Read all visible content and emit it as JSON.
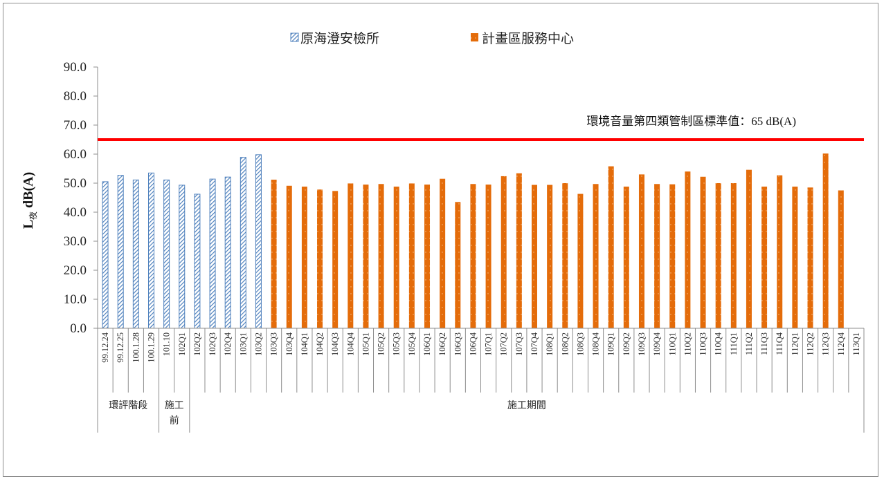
{
  "chart_data": {
    "type": "bar",
    "title": "",
    "ylabel": {
      "main": "L",
      "sub": "夜",
      "suffix": " dB(A)"
    },
    "ylim": [
      0,
      90
    ],
    "yticks": [
      "0.0",
      "10.0",
      "20.0",
      "30.0",
      "40.0",
      "50.0",
      "60.0",
      "70.0",
      "80.0",
      "90.0"
    ],
    "legend": {
      "position": "top-center"
    },
    "categories": [
      "99.12.24",
      "99.12.25",
      "100.1.28",
      "100.1.29",
      "101.10",
      "102Q1",
      "102Q2",
      "102Q3",
      "102Q4",
      "103Q1",
      "103Q2",
      "103Q3",
      "103Q4",
      "104Q1",
      "104Q2",
      "104Q3",
      "104Q4",
      "105Q1",
      "105Q2",
      "105Q3",
      "105Q4",
      "106Q1",
      "106Q2",
      "106Q3",
      "106Q4",
      "107Q1",
      "107Q2",
      "107Q3",
      "107Q4",
      "108Q1",
      "108Q2",
      "108Q3",
      "108Q4",
      "109Q1",
      "109Q2",
      "109Q3",
      "109Q4",
      "110Q1",
      "110Q2",
      "110Q3",
      "110Q4",
      "111Q1",
      "111Q2",
      "111Q3",
      "111Q4",
      "112Q1",
      "112Q2",
      "112Q3",
      "112Q4",
      "113Q1"
    ],
    "series": [
      {
        "name": "原海澄安檢所",
        "color": "#4f81bd",
        "pattern": "hatched",
        "values": [
          50.5,
          52.7,
          51.1,
          53.5,
          51.1,
          49.3,
          46.2,
          51.4,
          52.1,
          58.9,
          59.8,
          null,
          null,
          null,
          null,
          null,
          null,
          null,
          null,
          null,
          null,
          null,
          null,
          null,
          null,
          null,
          null,
          null,
          null,
          null,
          null,
          null,
          null,
          null,
          null,
          null,
          null,
          null,
          null,
          null,
          null,
          null,
          null,
          null,
          null,
          null,
          null,
          null,
          null,
          null
        ]
      },
      {
        "name": "計畫區服務中心",
        "color": "#e46c0a",
        "pattern": "solid",
        "values": [
          null,
          null,
          null,
          null,
          null,
          null,
          null,
          null,
          null,
          null,
          null,
          51.2,
          49.1,
          48.8,
          47.8,
          47.3,
          49.9,
          49.5,
          49.7,
          48.8,
          49.9,
          49.5,
          51.5,
          43.5,
          49.7,
          49.5,
          52.4,
          53.4,
          49.4,
          49.4,
          50.0,
          46.3,
          49.7,
          55.8,
          48.8,
          53.0,
          49.7,
          49.6,
          54.0,
          52.2,
          50.0,
          50.0,
          54.6,
          48.8,
          52.7,
          48.8,
          48.5,
          60.2,
          47.5,
          null
        ]
      }
    ],
    "reference_line": {
      "value": 65,
      "color": "#ff0000",
      "label": "環境音量第四類管制區標準值：65 dB(A)"
    },
    "groups": [
      {
        "label": "環評階段",
        "start": 0,
        "end": 3
      },
      {
        "label_lines": [
          "施工",
          "前"
        ],
        "start": 4,
        "end": 5
      },
      {
        "label": "施工期間",
        "start": 6,
        "end": 49
      }
    ]
  }
}
